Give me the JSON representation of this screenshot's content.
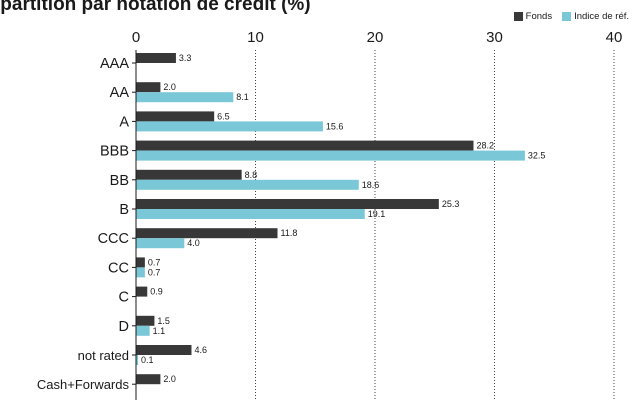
{
  "chart_data": {
    "type": "bar",
    "orientation": "horizontal",
    "title": "Répartition par notation de crédit (%)",
    "categories": [
      "AAA",
      "AA",
      "A",
      "BBB",
      "BB",
      "B",
      "CCC",
      "CC",
      "C",
      "D",
      "not rated",
      "Cash+Forwards"
    ],
    "series": [
      {
        "name": "Fonds",
        "color": "#383838",
        "values": [
          3.3,
          2.0,
          6.5,
          28.2,
          8.8,
          25.3,
          11.8,
          0.7,
          0.9,
          1.5,
          4.6,
          2.0
        ],
        "labels": [
          "3.3",
          "2.0",
          "6.5",
          "28.2",
          "8.8",
          "25.3",
          "11.8",
          "0.7",
          "0.9",
          "1.5",
          "4.6",
          "2.0"
        ]
      },
      {
        "name": "Indice de réf.",
        "color": "#7ac7d8",
        "values": [
          null,
          8.1,
          15.6,
          32.5,
          18.6,
          19.1,
          4.0,
          0.7,
          null,
          1.1,
          0.1,
          null
        ],
        "labels": [
          null,
          "8.1",
          "15.6",
          "32.5",
          "18.6",
          "19.1",
          "4.0",
          "0.7",
          null,
          "1.1",
          "0.1",
          null
        ]
      }
    ],
    "xlim": [
      0,
      40
    ],
    "xticks": [
      0,
      10,
      20,
      30,
      40
    ],
    "grid": "vertical dotted",
    "legend": "top-right"
  }
}
